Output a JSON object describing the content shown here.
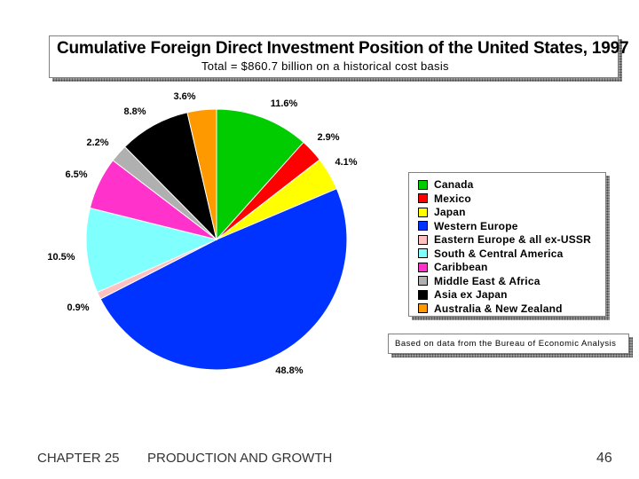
{
  "chart_data": {
    "type": "pie",
    "title": "Cumulative Foreign Direct Investment Position of the United States, 1997",
    "subtitle": "Total = $860.7 billion on a historical cost basis",
    "slices": [
      {
        "name": "Canada",
        "value": 11.6,
        "label": "11.6%",
        "color": "#00cc00"
      },
      {
        "name": "Mexico",
        "value": 2.9,
        "label": "2.9%",
        "color": "#ff0000"
      },
      {
        "name": "Japan",
        "value": 4.1,
        "label": "4.1%",
        "color": "#ffff00"
      },
      {
        "name": "Western Europe",
        "value": 48.8,
        "label": "48.8%",
        "color": "#0033ff"
      },
      {
        "name": "Eastern Europe & all ex-USSR",
        "value": 0.9,
        "label": "0.9%",
        "color": "#ffc0c0"
      },
      {
        "name": "South & Central America",
        "value": 10.5,
        "label": "10.5%",
        "color": "#80ffff"
      },
      {
        "name": "Caribbean",
        "value": 6.5,
        "label": "6.5%",
        "color": "#ff33cc"
      },
      {
        "name": "Middle East & Africa",
        "value": 2.2,
        "label": "2.2%",
        "color": "#b0b0b0"
      },
      {
        "name": "Asia ex Japan",
        "value": 8.8,
        "label": "8.8%",
        "color": "#000000"
      },
      {
        "name": "Australia & New Zealand",
        "value": 3.6,
        "label": "3.6%",
        "color": "#ff9900"
      }
    ],
    "legend_position": "right",
    "source_note": "Based on data from the Bureau of Economic Analysis"
  },
  "footer": {
    "chapter": "CHAPTER 25",
    "chapter_title": "PRODUCTION AND GROWTH",
    "page_number": "46"
  }
}
